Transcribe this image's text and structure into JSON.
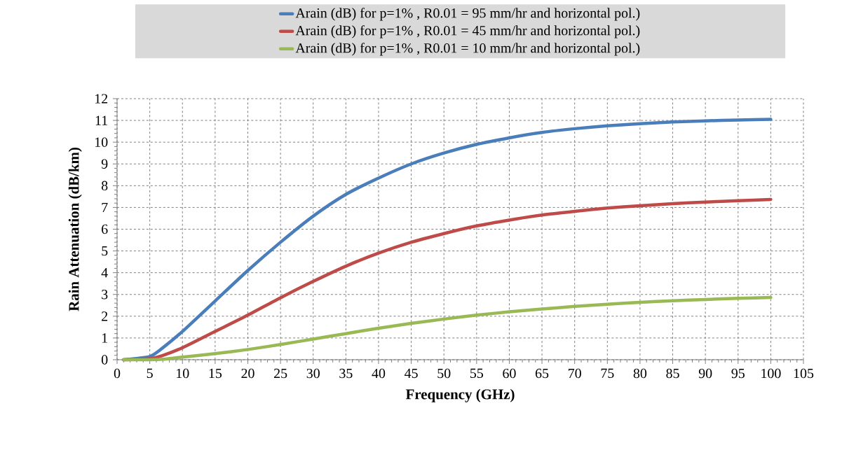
{
  "chart_data": {
    "type": "line",
    "xlabel": "Frequency (GHz)",
    "ylabel": "Rain Attenuation  (dB/km)",
    "x": [
      1,
      5,
      7,
      10,
      15,
      20,
      25,
      30,
      35,
      40,
      45,
      50,
      55,
      60,
      65,
      70,
      75,
      80,
      85,
      90,
      95,
      100
    ],
    "series": [
      {
        "name": "Arain (dB) for p=1% , R0.01 = 95  mm/hr and horizontal pol.)",
        "color": "#4a7ebb",
        "values": [
          0,
          0.15,
          0.55,
          1.3,
          2.7,
          4.1,
          5.4,
          6.6,
          7.6,
          8.35,
          9.0,
          9.5,
          9.9,
          10.2,
          10.45,
          10.62,
          10.75,
          10.85,
          10.93,
          10.98,
          11.02,
          11.05
        ]
      },
      {
        "name": "Arain (dB) for p=1% , R0.01 = 45  mm/hr and horizontal pol.)",
        "color": "#be4b48",
        "values": [
          0,
          0.05,
          0.2,
          0.55,
          1.3,
          2.05,
          2.85,
          3.6,
          4.3,
          4.9,
          5.4,
          5.8,
          6.15,
          6.42,
          6.65,
          6.82,
          6.97,
          7.08,
          7.17,
          7.25,
          7.31,
          7.37
        ]
      },
      {
        "name": "Arain (dB) for p=1% , R0.01 = 10  mm/hr and horizontal pol.)",
        "color": "#98b954",
        "values": [
          0,
          0,
          0.02,
          0.12,
          0.28,
          0.47,
          0.7,
          0.95,
          1.2,
          1.45,
          1.67,
          1.87,
          2.05,
          2.2,
          2.33,
          2.45,
          2.55,
          2.64,
          2.71,
          2.77,
          2.82,
          2.86
        ]
      }
    ],
    "xlim": [
      0,
      105
    ],
    "ylim": [
      0,
      12
    ],
    "xticks": [
      0,
      5,
      10,
      15,
      20,
      25,
      30,
      35,
      40,
      45,
      50,
      55,
      60,
      65,
      70,
      75,
      80,
      85,
      90,
      95,
      100,
      105
    ],
    "yticks": [
      0,
      1,
      2,
      3,
      4,
      5,
      6,
      7,
      8,
      9,
      10,
      11,
      12
    ],
    "grid": true,
    "legend": "top",
    "marker": "none",
    "line_style": "solid"
  }
}
